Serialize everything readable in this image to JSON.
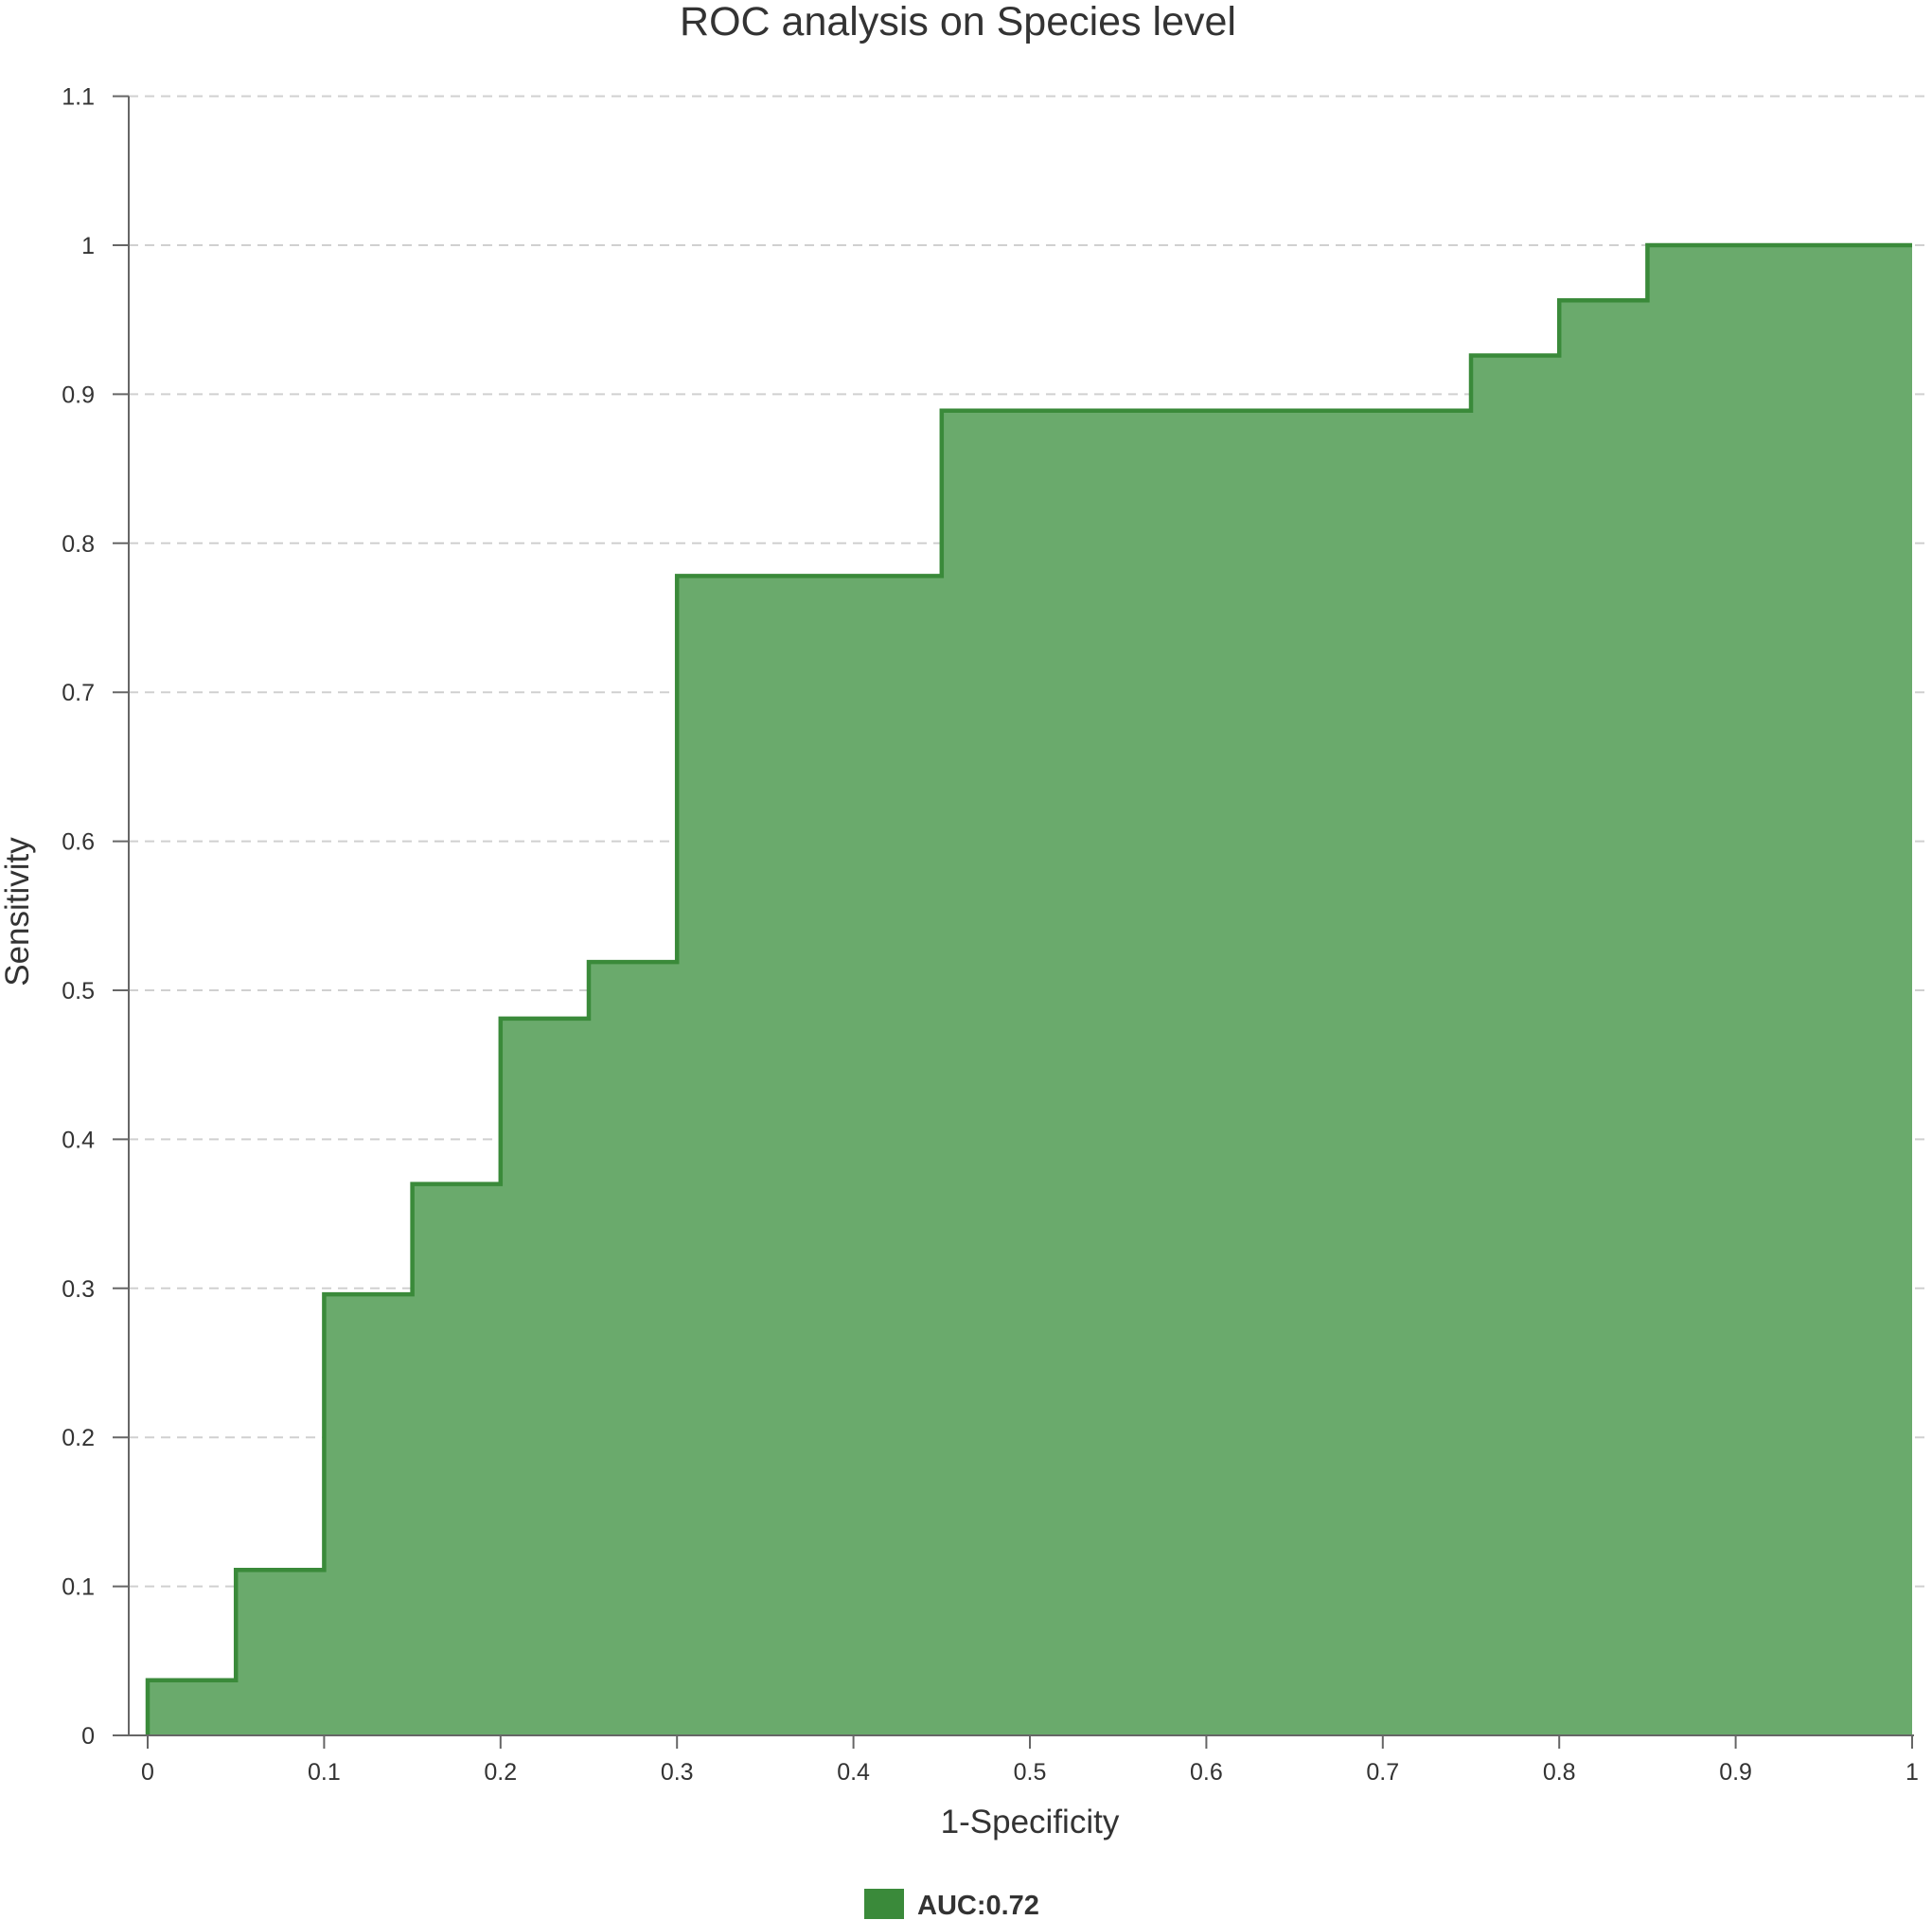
{
  "chart_data": {
    "type": "area",
    "title": "ROC analysis on Species level",
    "xlabel": "1-Specificity",
    "ylabel": "Sensitivity",
    "xlim": [
      0,
      1
    ],
    "ylim": [
      0,
      1.1
    ],
    "x_ticks": [
      "0",
      "0.1",
      "0.2",
      "0.3",
      "0.4",
      "0.5",
      "0.6",
      "0.7",
      "0.8",
      "0.9",
      "1"
    ],
    "y_ticks": [
      "0",
      "0.1",
      "0.2",
      "0.3",
      "0.4",
      "0.5",
      "0.6",
      "0.7",
      "0.8",
      "0.9",
      "1",
      "1.1"
    ],
    "grid": true,
    "step": "horizontal-then-vertical",
    "legend_position": "bottom-center",
    "series": [
      {
        "name": "AUC:0.72",
        "color": "#3a8a3a",
        "fill_color": "#6aaa6c",
        "points": [
          {
            "x": 0,
            "y": 0
          },
          {
            "x": 0,
            "y": 0.037
          },
          {
            "x": 0.05,
            "y": 0.111
          },
          {
            "x": 0.1,
            "y": 0.296
          },
          {
            "x": 0.15,
            "y": 0.37
          },
          {
            "x": 0.2,
            "y": 0.481
          },
          {
            "x": 0.25,
            "y": 0.519
          },
          {
            "x": 0.3,
            "y": 0.778
          },
          {
            "x": 0.45,
            "y": 0.889
          },
          {
            "x": 0.75,
            "y": 0.926
          },
          {
            "x": 0.8,
            "y": 0.963
          },
          {
            "x": 0.85,
            "y": 1.0
          },
          {
            "x": 1.0,
            "y": 1.0
          }
        ]
      }
    ]
  }
}
